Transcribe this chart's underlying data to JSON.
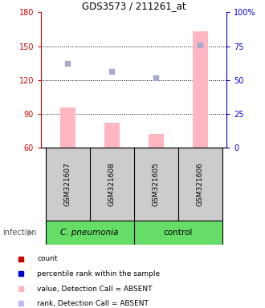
{
  "title": "GDS3573 / 211261_at",
  "samples": [
    "GSM321607",
    "GSM321608",
    "GSM321605",
    "GSM321606"
  ],
  "bar_values": [
    96,
    82,
    72,
    163
  ],
  "bar_color": "#FFB6C1",
  "bar_bottom": 60,
  "scatter_absent_value": [
    135,
    128,
    122,
    151
  ],
  "x_positions": [
    0,
    1,
    2,
    3
  ],
  "ylim_left": [
    60,
    180
  ],
  "ylim_right": [
    0,
    100
  ],
  "yticks_left": [
    60,
    90,
    120,
    150,
    180
  ],
  "yticks_right": [
    0,
    25,
    50,
    75,
    100
  ],
  "ytick_labels_right": [
    "0",
    "25",
    "50",
    "75",
    "100%"
  ],
  "left_axis_color": "#CC0000",
  "right_axis_color": "#0000CC",
  "group_label_1": "C. pneumonia",
  "group_label_2": "control",
  "group_color": "#66DD66",
  "sample_box_color": "#CCCCCC",
  "infection_label": "infection",
  "legend_items": [
    {
      "label": "count",
      "color": "#CC0000"
    },
    {
      "label": "percentile rank within the sample",
      "color": "#0000CC"
    },
    {
      "label": "value, Detection Call = ABSENT",
      "color": "#FFB6C1"
    },
    {
      "label": "rank, Detection Call = ABSENT",
      "color": "#BBBBEE"
    }
  ],
  "scatter_color": "#AAAACC",
  "bar_width": 0.35
}
